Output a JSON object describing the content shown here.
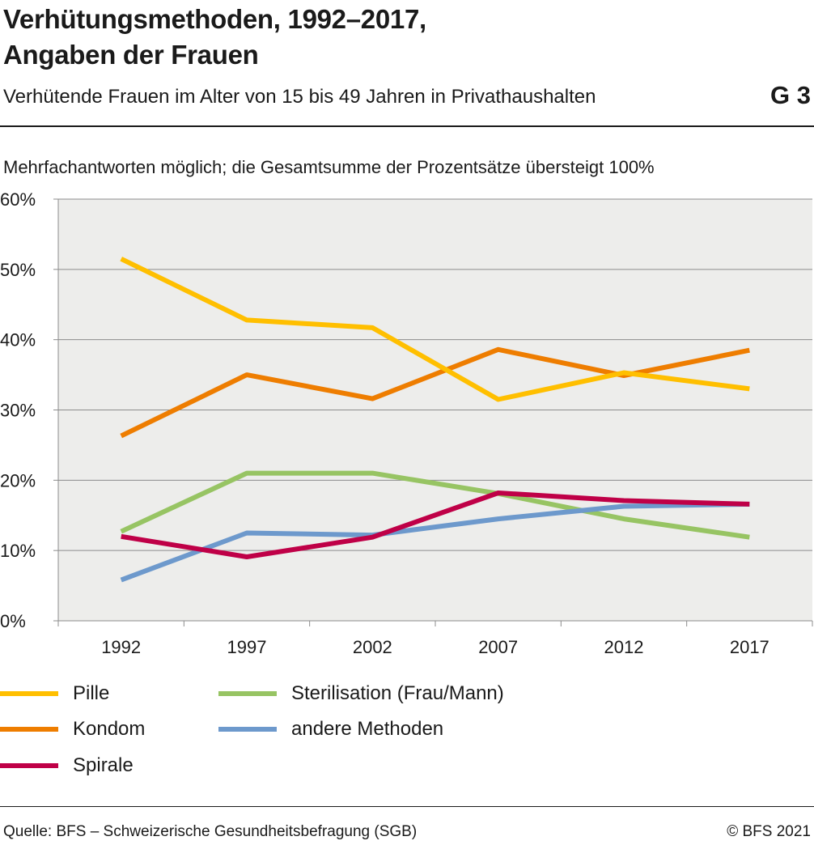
{
  "header": {
    "title_line1": "Verhütungsmethoden, 1992–2017,",
    "title_line2": "Angaben der Frauen",
    "subtitle": "Verhütende Frauen im Alter von 15 bis 49 Jahren in Privathaushalten",
    "graphic_number": "G 3"
  },
  "note": "Mehrfachantworten möglich; die Gesamtsumme der Prozentsätze übersteigt 100%",
  "footer": {
    "source": "Quelle: BFS – Schweizerische Gesundheitsbefragung (SGB)",
    "copyright": "© BFS 2021"
  },
  "chart_data": {
    "type": "line",
    "x": [
      "1992",
      "1997",
      "2002",
      "2007",
      "2012",
      "2017"
    ],
    "ylim": [
      0,
      60
    ],
    "yticks": [
      0,
      10,
      20,
      30,
      40,
      50,
      60
    ],
    "ytick_labels": [
      "0%",
      "10%",
      "20%",
      "30%",
      "40%",
      "50%",
      "60%"
    ],
    "grid": true,
    "legend_position": "bottom",
    "plot_background": "#ededeb",
    "series": [
      {
        "name": "Pille",
        "color": "#ffbf00",
        "values": [
          51.5,
          42.8,
          41.7,
          31.5,
          35.3,
          33.0
        ]
      },
      {
        "name": "Kondom",
        "color": "#ee7d00",
        "values": [
          26.3,
          35.0,
          31.6,
          38.6,
          34.9,
          38.5
        ]
      },
      {
        "name": "Spirale",
        "color": "#bf0047",
        "values": [
          12.0,
          9.1,
          11.9,
          18.2,
          17.1,
          16.6
        ]
      },
      {
        "name": "Sterilisation (Frau/Mann)",
        "color": "#97c463",
        "values": [
          12.7,
          21.0,
          21.0,
          18.1,
          14.5,
          11.9
        ]
      },
      {
        "name": "andere Methoden",
        "color": "#6d99cc",
        "values": [
          5.8,
          12.5,
          12.2,
          14.5,
          16.3,
          16.6
        ]
      }
    ]
  }
}
